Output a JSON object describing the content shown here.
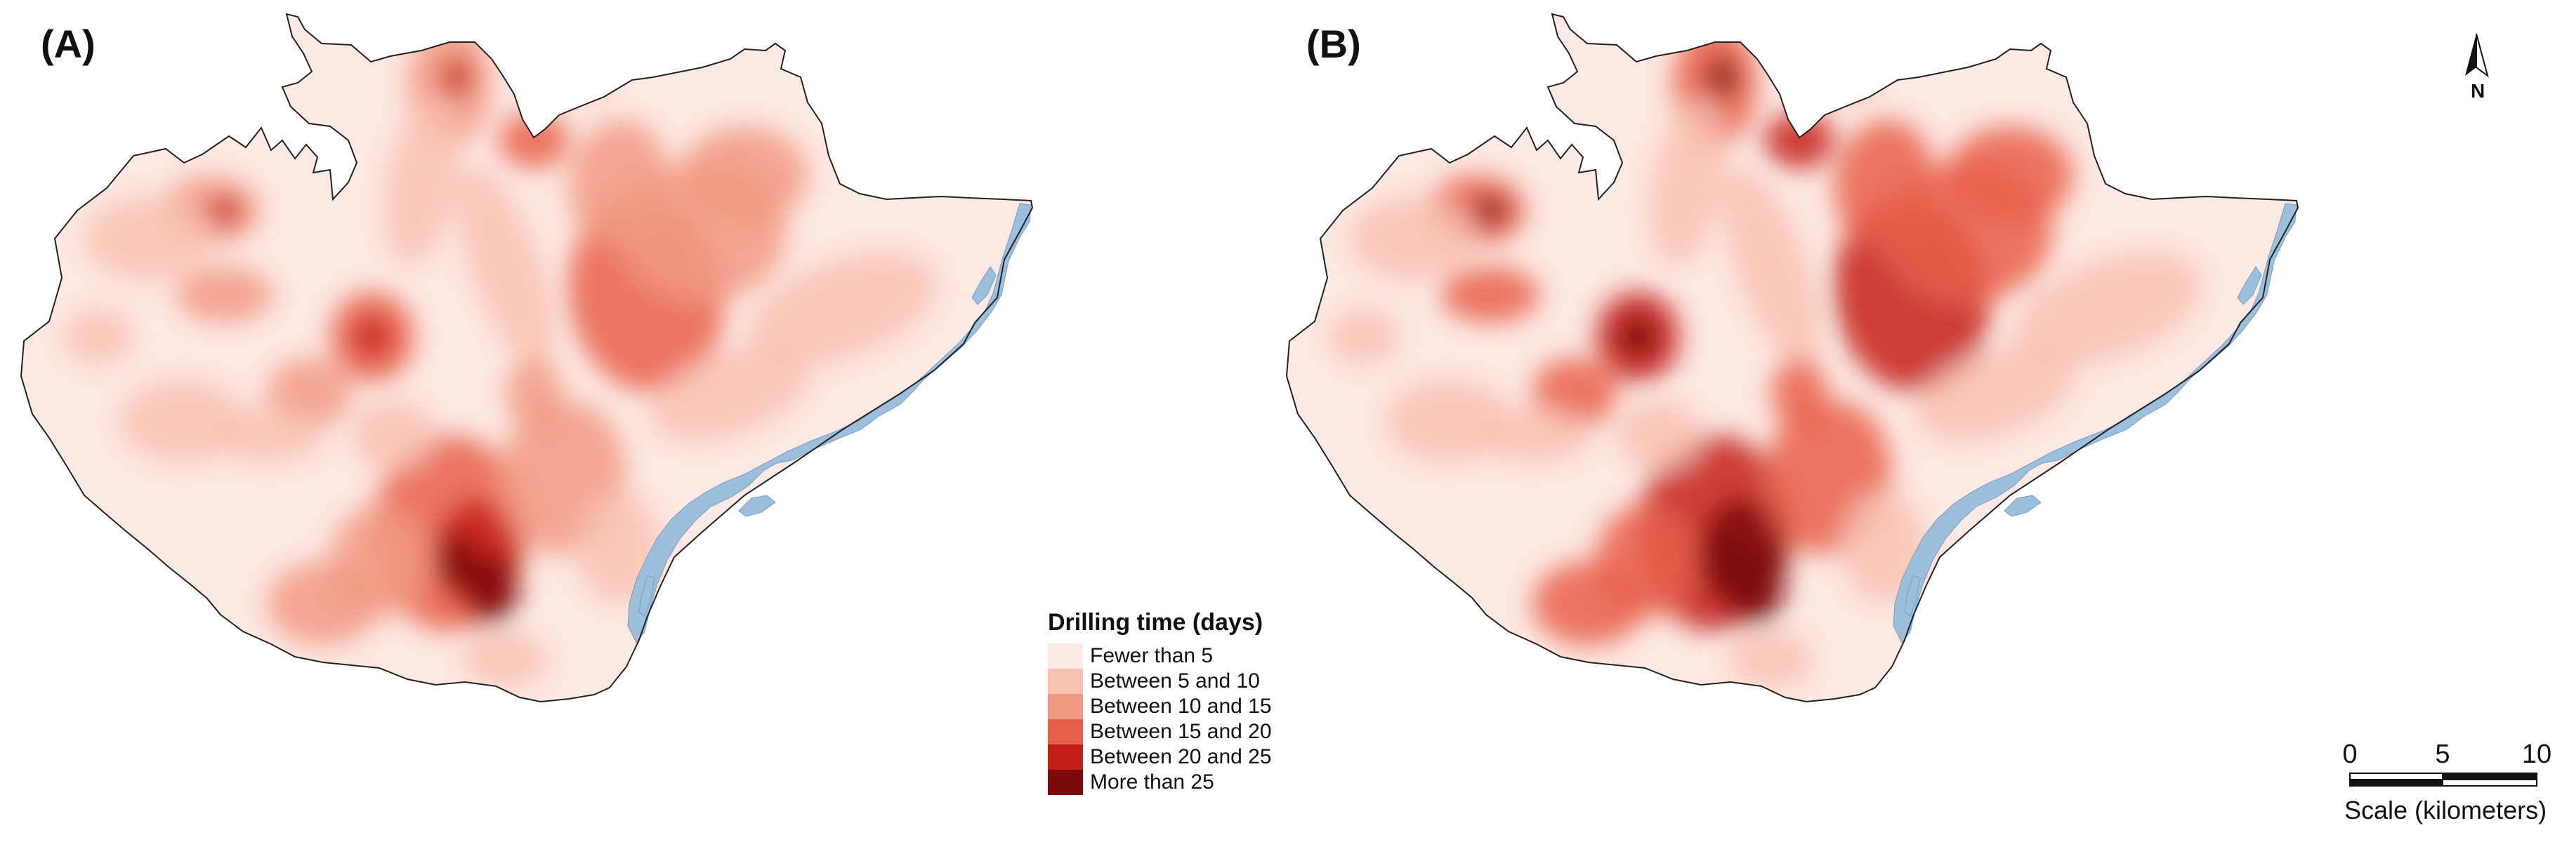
{
  "panels": [
    {
      "label": "(A)",
      "variant": "lower"
    },
    {
      "label": "(B)",
      "variant": "higher"
    }
  ],
  "legend": {
    "title": "Drilling time (days)",
    "classes": [
      {
        "label": "Fewer than 5",
        "color": "#fde9e3"
      },
      {
        "label": "Between 5 and 10",
        "color": "#f8c2b2"
      },
      {
        "label": "Between 10 and 15",
        "color": "#f19a83"
      },
      {
        "label": "Between 15 and 20",
        "color": "#e7604a"
      },
      {
        "label": "Between 20 and 25",
        "color": "#c41f17"
      },
      {
        "label": "More than 25",
        "color": "#7c0a0a"
      }
    ]
  },
  "north_arrow": {
    "label": "N"
  },
  "scale_bar": {
    "ticks": [
      "0",
      "5",
      "10"
    ],
    "title": "Scale (kilometers)"
  },
  "colors": {
    "river": "#9cbfde",
    "boundary": "#222222",
    "base": "#fde9e3"
  }
}
